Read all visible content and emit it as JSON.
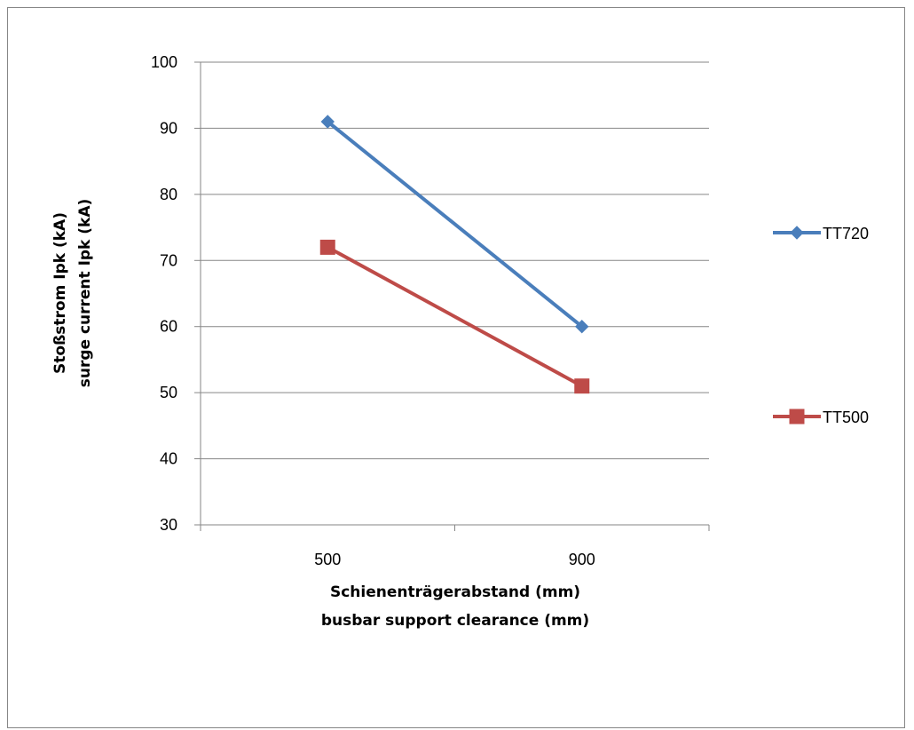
{
  "chart_data": {
    "type": "line",
    "categories": [
      "500",
      "900"
    ],
    "series": [
      {
        "name": "TT720",
        "values": [
          91,
          60
        ],
        "color": "#4a7ebb",
        "marker": "diamond"
      },
      {
        "name": "TT500",
        "values": [
          72,
          51
        ],
        "color": "#be4b48",
        "marker": "square"
      }
    ],
    "title": "",
    "xlabel": [
      "Schienenträgerabstand (mm)",
      "busbar support clearance (mm)"
    ],
    "ylabel": [
      "Stoßstrom Ipk (kA)",
      "surge current Ipk (kA)"
    ],
    "ylim": [
      30,
      100
    ],
    "yticks": [
      30,
      40,
      50,
      60,
      70,
      80,
      90,
      100
    ],
    "grid": true,
    "legend_position": "right",
    "colors": {
      "gridline": "#868686",
      "axis": "#868686"
    }
  }
}
